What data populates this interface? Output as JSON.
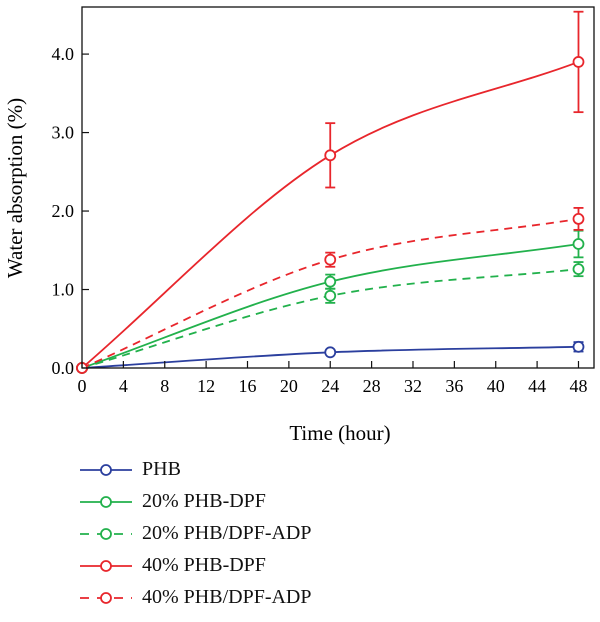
{
  "chart_data": {
    "type": "line",
    "xlabel": "Time (hour)",
    "ylabel": "Water absorption (%)",
    "xlim": [
      0,
      49.5
    ],
    "ylim": [
      0,
      4.6
    ],
    "xticks": [
      0,
      4,
      8,
      12,
      16,
      20,
      24,
      28,
      32,
      36,
      40,
      44,
      48
    ],
    "xtick_labels": [
      "0",
      "4",
      "8",
      "12",
      "16",
      "20",
      "24",
      "28",
      "32",
      "36",
      "40",
      "44",
      "48"
    ],
    "yticks": [
      0,
      1,
      2,
      3,
      4
    ],
    "ytick_labels": [
      "0.0",
      "1.0",
      "2.0",
      "3.0",
      "4.0"
    ],
    "grid": false,
    "legend_position": "bottom-left, below plot",
    "x": [
      0,
      24,
      48
    ],
    "series": [
      {
        "name": "PHB",
        "values": [
          0,
          0.2,
          0.27
        ],
        "error": [
          0,
          0.02,
          0.06
        ],
        "color": "#2b3f9e",
        "dashed": false
      },
      {
        "name": "20% PHB-DPF",
        "values": [
          0,
          1.1,
          1.58
        ],
        "error": [
          0,
          0.09,
          0.17
        ],
        "color": "#22b14c",
        "dashed": false
      },
      {
        "name": "20% PHB/DPF-ADP",
        "values": [
          0,
          0.92,
          1.26
        ],
        "error": [
          0,
          0.09,
          0.09
        ],
        "color": "#22b14c",
        "dashed": true
      },
      {
        "name": "40% PHB-DPF",
        "values": [
          0,
          2.71,
          3.9
        ],
        "error": [
          0,
          0.41,
          0.64
        ],
        "color": "#e8262c",
        "dashed": false
      },
      {
        "name": "40% PHB/DPF-ADP",
        "values": [
          0,
          1.38,
          1.9
        ],
        "error": [
          0,
          0.09,
          0.14
        ],
        "color": "#e8262c",
        "dashed": true
      }
    ]
  }
}
